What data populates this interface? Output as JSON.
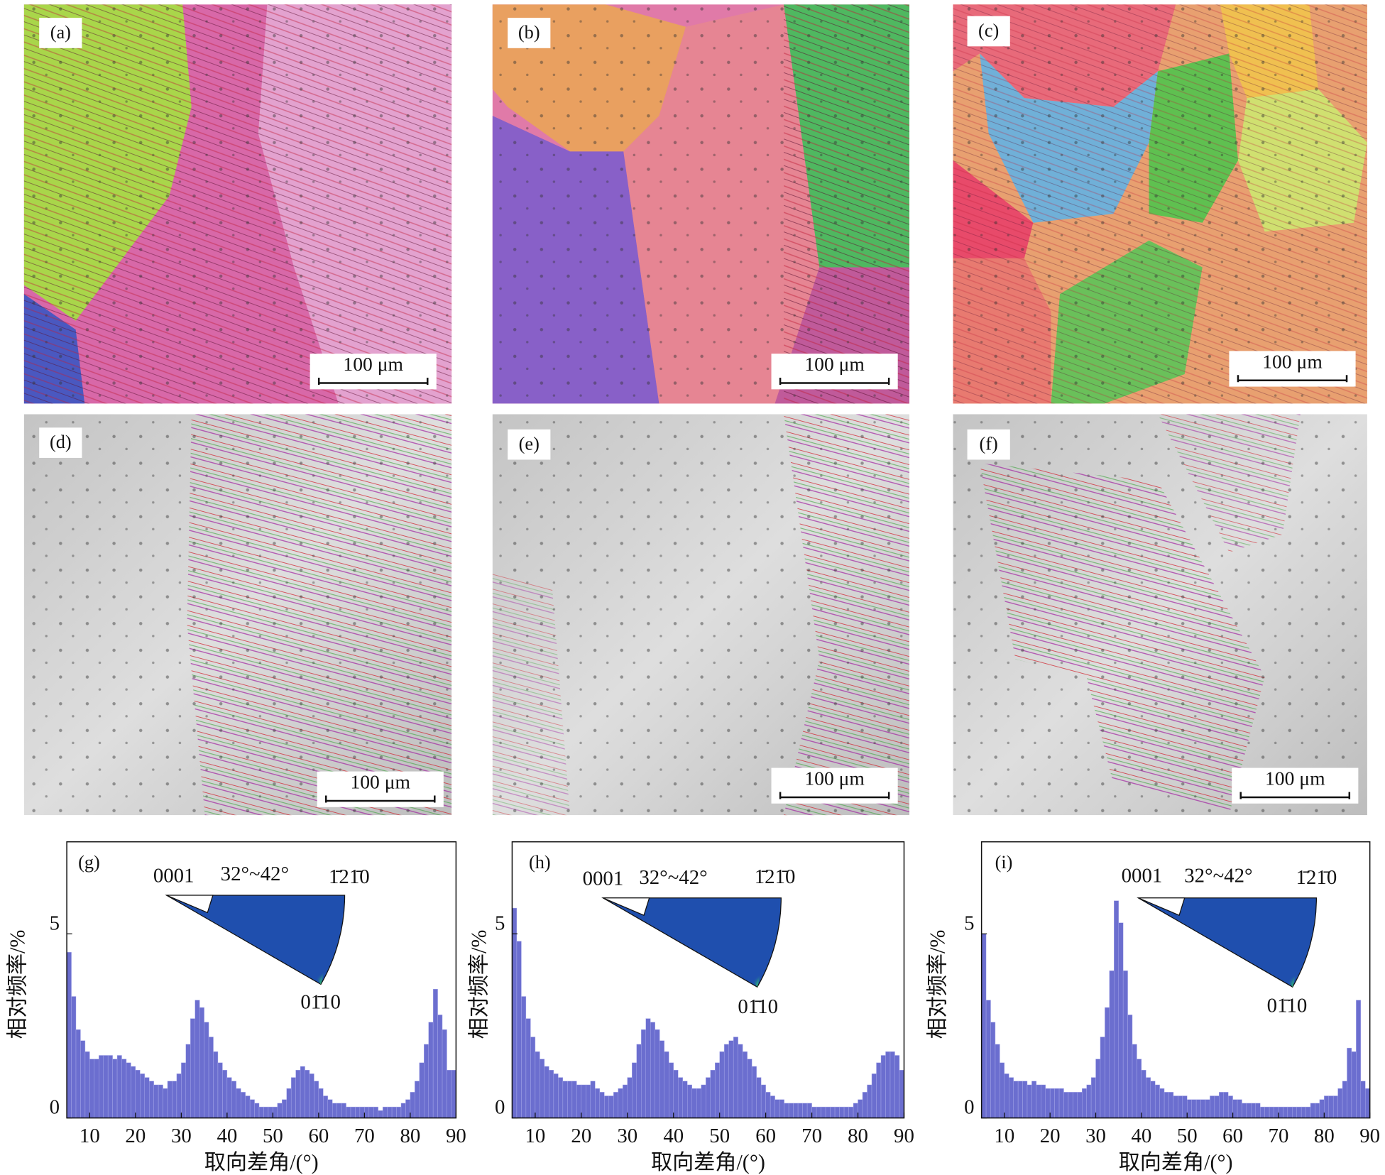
{
  "maps": [
    {
      "label": "(a)",
      "scale_bar": "100 μm"
    },
    {
      "label": "(b)",
      "scale_bar": "100 μm"
    },
    {
      "label": "(c)",
      "scale_bar": "100 μm"
    },
    {
      "label": "(d)",
      "scale_bar": "100 μm"
    },
    {
      "label": "(e)",
      "scale_bar": "100 μm"
    },
    {
      "label": "(f)",
      "scale_bar": "100 μm"
    }
  ],
  "chart_data": [
    {
      "type": "histogram",
      "title": "(g)",
      "x_label": "取向差角/(°)",
      "y_label": "相对频率/%",
      "annotations": [
        "0001",
        "32°~42°",
        "1̄21̄0",
        "01̄10"
      ],
      "color": "#6b6ecf",
      "bins": [
        5,
        6,
        7,
        8,
        9,
        10,
        11,
        12,
        13,
        14,
        15,
        16,
        17,
        18,
        19,
        20,
        21,
        22,
        23,
        24,
        25,
        26,
        27,
        28,
        29,
        30,
        31,
        32,
        33,
        34,
        35,
        36,
        37,
        38,
        39,
        40,
        41,
        42,
        43,
        44,
        45,
        46,
        47,
        48,
        49,
        50,
        51,
        52,
        53,
        54,
        55,
        56,
        57,
        58,
        59,
        60,
        61,
        62,
        63,
        64,
        65,
        66,
        67,
        68,
        69,
        70,
        71,
        72,
        73,
        74,
        75,
        76,
        77,
        78,
        79,
        80,
        81,
        82,
        83,
        84,
        85,
        86,
        87,
        88,
        89,
        90
      ],
      "values": [
        4.5,
        3.3,
        2.4,
        2.1,
        1.8,
        1.6,
        1.6,
        1.7,
        1.7,
        1.7,
        1.6,
        1.7,
        1.6,
        1.5,
        1.4,
        1.3,
        1.2,
        1.1,
        1.0,
        0.9,
        0.9,
        0.8,
        1.0,
        1.0,
        1.2,
        1.5,
        2.0,
        2.7,
        3.2,
        3.0,
        2.6,
        2.2,
        1.8,
        1.5,
        1.3,
        1.1,
        1.0,
        0.8,
        0.7,
        0.6,
        0.5,
        0.4,
        0.3,
        0.3,
        0.3,
        0.3,
        0.4,
        0.5,
        0.8,
        1.1,
        1.3,
        1.4,
        1.3,
        1.2,
        1.0,
        0.8,
        0.6,
        0.5,
        0.4,
        0.4,
        0.4,
        0.3,
        0.3,
        0.3,
        0.3,
        0.3,
        0.3,
        0.3,
        0.2,
        0.3,
        0.3,
        0.3,
        0.3,
        0.4,
        0.5,
        0.7,
        1.0,
        1.5,
        2.0,
        2.6,
        3.5,
        2.8,
        2.4,
        1.3,
        1.3
      ],
      "xlim": [
        5,
        90
      ],
      "ylim": [
        0,
        7.5
      ],
      "xticks": [
        10,
        20,
        30,
        40,
        50,
        60,
        70,
        80,
        90
      ],
      "yticks": [
        0,
        5
      ]
    },
    {
      "type": "histogram",
      "title": "(h)",
      "x_label": "取向差角/(°)",
      "y_label": "相对频率/%",
      "annotations": [
        "0001",
        "32°~42°",
        "1̄21̄0",
        "01̄10"
      ],
      "color": "#6b6ecf",
      "bins": [
        5,
        6,
        7,
        8,
        9,
        10,
        11,
        12,
        13,
        14,
        15,
        16,
        17,
        18,
        19,
        20,
        21,
        22,
        23,
        24,
        25,
        26,
        27,
        28,
        29,
        30,
        31,
        32,
        33,
        34,
        35,
        36,
        37,
        38,
        39,
        40,
        41,
        42,
        43,
        44,
        45,
        46,
        47,
        48,
        49,
        50,
        51,
        52,
        53,
        54,
        55,
        56,
        57,
        58,
        59,
        60,
        61,
        62,
        63,
        64,
        65,
        66,
        67,
        68,
        69,
        70,
        71,
        72,
        73,
        74,
        75,
        76,
        77,
        78,
        79,
        80,
        81,
        82,
        83,
        84,
        85,
        86,
        87,
        88,
        89,
        90
      ],
      "values": [
        5.7,
        4.8,
        3.3,
        2.7,
        2.2,
        1.8,
        1.6,
        1.4,
        1.3,
        1.2,
        1.1,
        1.0,
        1.0,
        1.0,
        0.9,
        0.9,
        0.9,
        1.0,
        0.8,
        0.7,
        0.6,
        0.6,
        0.7,
        0.8,
        0.9,
        1.1,
        1.5,
        2.0,
        2.4,
        2.7,
        2.6,
        2.4,
        2.1,
        1.8,
        1.5,
        1.3,
        1.1,
        1.0,
        0.9,
        0.8,
        0.8,
        0.9,
        1.1,
        1.3,
        1.5,
        1.8,
        2.0,
        2.1,
        2.2,
        2.0,
        1.8,
        1.6,
        1.4,
        1.1,
        0.9,
        0.7,
        0.6,
        0.5,
        0.5,
        0.4,
        0.4,
        0.4,
        0.4,
        0.4,
        0.4,
        0.3,
        0.3,
        0.3,
        0.3,
        0.3,
        0.3,
        0.3,
        0.3,
        0.3,
        0.4,
        0.5,
        0.7,
        0.9,
        1.2,
        1.5,
        1.7,
        1.8,
        1.8,
        1.7,
        1.3
      ],
      "xlim": [
        5,
        90
      ],
      "ylim": [
        0,
        7.5
      ],
      "xticks": [
        10,
        20,
        30,
        40,
        50,
        60,
        70,
        80,
        90
      ],
      "yticks": [
        0,
        5
      ]
    },
    {
      "type": "histogram",
      "title": "(i)",
      "x_label": "取向差角/(°)",
      "y_label": "相对频率/%",
      "annotations": [
        "0001",
        "32°~42°",
        "1̄21̄0",
        "01̄10"
      ],
      "color": "#6b6ecf",
      "bins": [
        5,
        6,
        7,
        8,
        9,
        10,
        11,
        12,
        13,
        14,
        15,
        16,
        17,
        18,
        19,
        20,
        21,
        22,
        23,
        24,
        25,
        26,
        27,
        28,
        29,
        30,
        31,
        32,
        33,
        34,
        35,
        36,
        37,
        38,
        39,
        40,
        41,
        42,
        43,
        44,
        45,
        46,
        47,
        48,
        49,
        50,
        51,
        52,
        53,
        54,
        55,
        56,
        57,
        58,
        59,
        60,
        61,
        62,
        63,
        64,
        65,
        66,
        67,
        68,
        69,
        70,
        71,
        72,
        73,
        74,
        75,
        76,
        77,
        78,
        79,
        80,
        81,
        82,
        83,
        84,
        85,
        86,
        87,
        88,
        89,
        90
      ],
      "values": [
        5.0,
        3.2,
        2.6,
        2.0,
        1.5,
        1.2,
        1.1,
        1.0,
        1.0,
        1.0,
        0.9,
        1.0,
        0.9,
        0.9,
        0.8,
        0.8,
        0.8,
        0.8,
        0.7,
        0.7,
        0.7,
        0.7,
        0.8,
        0.9,
        1.1,
        1.6,
        2.2,
        3.0,
        4.0,
        5.9,
        5.3,
        4.0,
        2.8,
        2.0,
        1.6,
        1.3,
        1.1,
        1.0,
        0.9,
        0.8,
        0.7,
        0.7,
        0.6,
        0.6,
        0.6,
        0.5,
        0.5,
        0.5,
        0.5,
        0.5,
        0.6,
        0.6,
        0.7,
        0.7,
        0.6,
        0.5,
        0.5,
        0.4,
        0.4,
        0.4,
        0.4,
        0.3,
        0.3,
        0.3,
        0.3,
        0.3,
        0.3,
        0.3,
        0.3,
        0.3,
        0.3,
        0.3,
        0.4,
        0.4,
        0.5,
        0.6,
        0.6,
        0.6,
        0.8,
        1.0,
        1.9,
        1.8,
        3.2,
        1.0,
        0.8
      ],
      "xlim": [
        5,
        90
      ],
      "ylim": [
        0,
        7.5
      ],
      "xticks": [
        10,
        20,
        30,
        40,
        50,
        60,
        70,
        80,
        90
      ],
      "yticks": [
        0,
        5
      ]
    }
  ]
}
